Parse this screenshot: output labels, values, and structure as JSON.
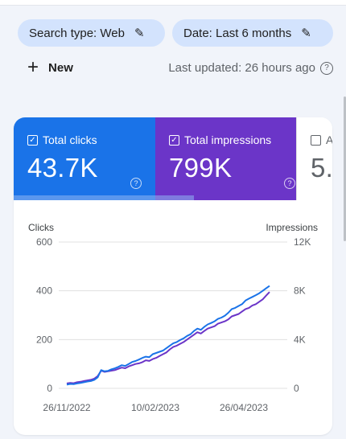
{
  "filters": {
    "search_type": "Search type: Web",
    "date": "Date: Last 6 months"
  },
  "toolbar": {
    "new_label": "New",
    "last_updated": "Last updated: 26 hours ago"
  },
  "metrics": [
    {
      "label": "Total clicks",
      "value": "43.7K",
      "selected": true,
      "color": "#1a73e8"
    },
    {
      "label": "Total impressions",
      "value": "799K",
      "selected": true,
      "color": "#6b35c8"
    },
    {
      "label": "A",
      "value": "5.",
      "selected": false,
      "color": "#ffffff"
    }
  ],
  "chart_data": {
    "type": "line",
    "ylabel": "Clicks",
    "y2label": "Impressions",
    "ylim": [
      0,
      600
    ],
    "y2lim": [
      0,
      12000
    ],
    "yticks": [
      "600",
      "400",
      "200",
      "0"
    ],
    "y2ticks": [
      "12K",
      "8K",
      "4K",
      "0"
    ],
    "xticks": [
      "26/11/2022",
      "10/02/2023",
      "26/04/2023"
    ],
    "series": [
      {
        "name": "Clicks",
        "color": "#1a73e8",
        "axis": "left",
        "values": [
          15,
          18,
          17,
          20,
          22,
          25,
          28,
          30,
          35,
          45,
          75,
          70,
          72,
          78,
          82,
          88,
          95,
          92,
          100,
          108,
          112,
          118,
          125,
          130,
          128,
          140,
          145,
          150,
          155,
          165,
          175,
          185,
          190,
          198,
          205,
          215,
          222,
          235,
          245,
          240,
          252,
          262,
          268,
          275,
          285,
          290,
          298,
          310,
          325,
          330,
          338,
          345,
          360,
          368,
          375,
          382,
          390,
          400,
          410,
          420
        ]
      },
      {
        "name": "Impressions",
        "color": "#6b35c8",
        "axis": "right",
        "values": [
          400,
          450,
          420,
          500,
          540,
          600,
          650,
          700,
          800,
          1000,
          1450,
          1350,
          1400,
          1450,
          1500,
          1600,
          1700,
          1650,
          1800,
          1900,
          2000,
          2050,
          2150,
          2300,
          2250,
          2400,
          2500,
          2650,
          2800,
          2950,
          3200,
          3400,
          3500,
          3650,
          3800,
          4000,
          4200,
          4400,
          4600,
          4500,
          4700,
          4900,
          5000,
          5100,
          5300,
          5400,
          5500,
          5650,
          5900,
          6000,
          6100,
          6300,
          6500,
          6600,
          6800,
          6900,
          7100,
          7300,
          7600,
          7900
        ]
      }
    ]
  }
}
